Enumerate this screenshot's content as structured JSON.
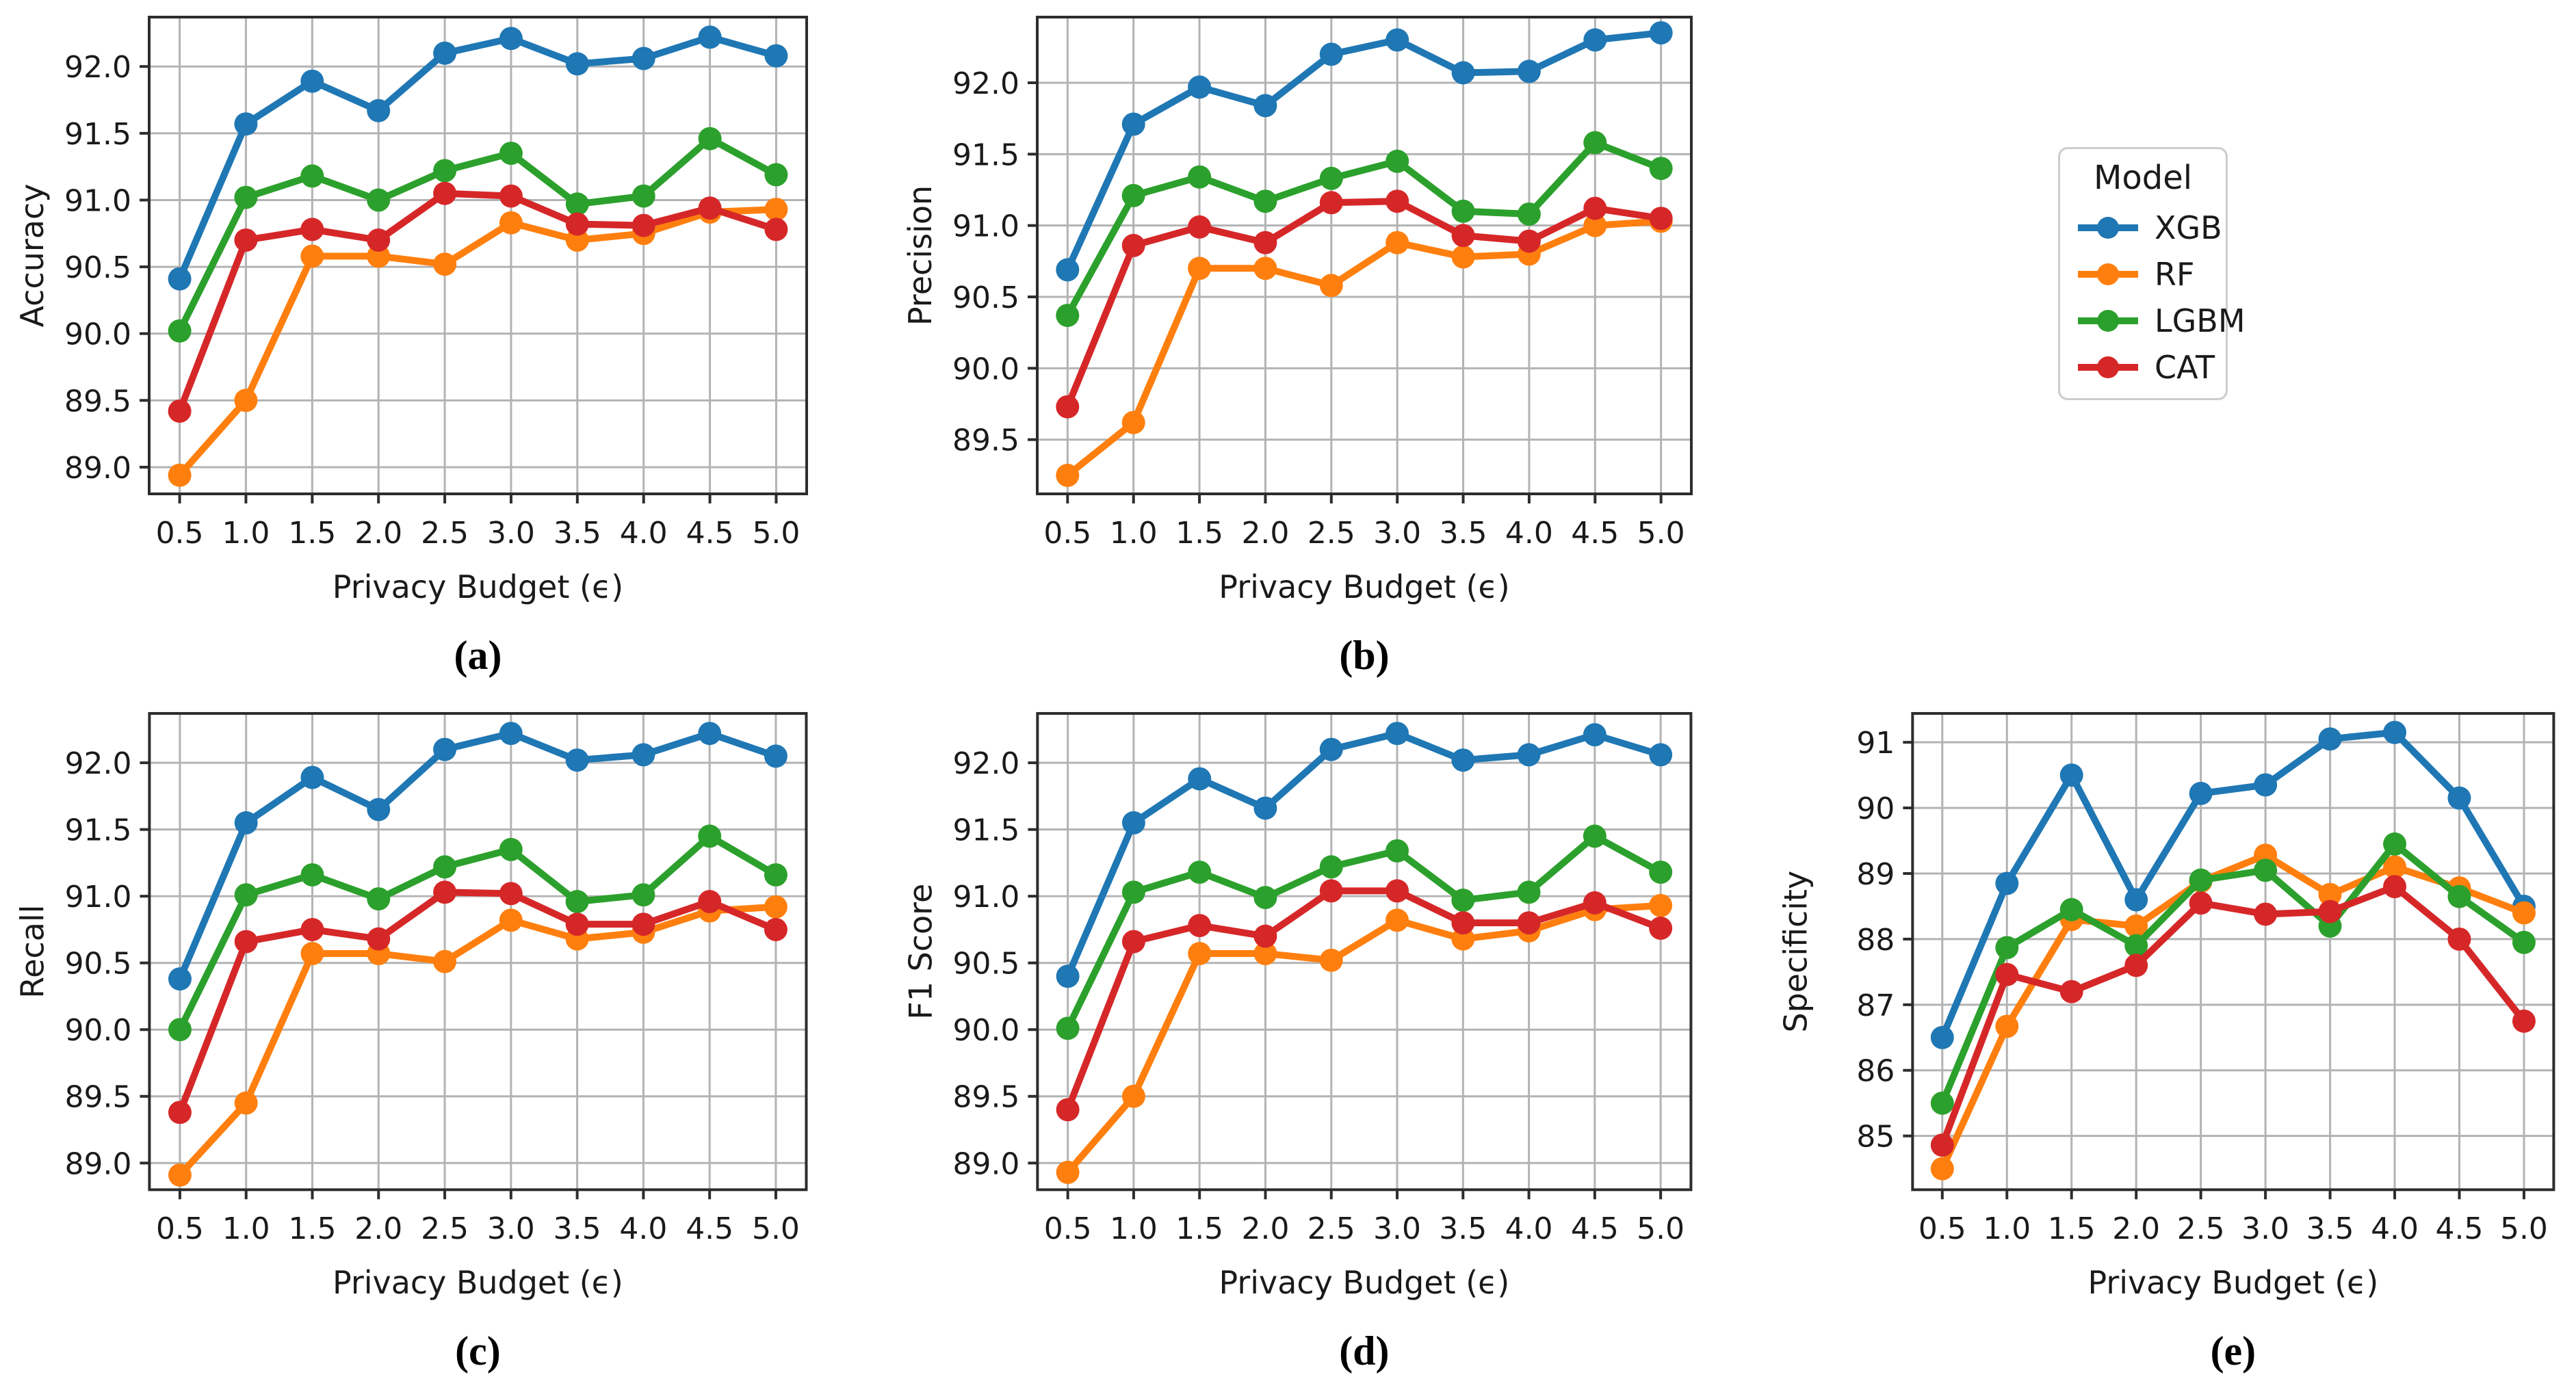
{
  "figure": {
    "background": "#ffffff",
    "legend": {
      "title": "Model",
      "entries": [
        {
          "label": "XGB",
          "color": "#1f77b4"
        },
        {
          "label": "RF",
          "color": "#ff7f0e"
        },
        {
          "label": "LGBM",
          "color": "#2ca02c"
        },
        {
          "label": "CAT",
          "color": "#d62728"
        }
      ]
    },
    "shared_xlabel": "Privacy Budget (ϵ)",
    "grid_color": "#b3b3b3",
    "spine_color": "#2d2d2d"
  },
  "chart_data": [
    {
      "type": "line",
      "caption": "(a)",
      "ylabel": "Accuracy",
      "xlabel": "Privacy Budget (ϵ)",
      "x": [
        0.5,
        1.0,
        1.5,
        2.0,
        2.5,
        3.0,
        3.5,
        4.0,
        4.5,
        5.0
      ],
      "xtick_labels": [
        "0.5",
        "1.0",
        "1.5",
        "2.0",
        "2.5",
        "3.0",
        "3.5",
        "4.0",
        "4.5",
        "5.0"
      ],
      "yticks": [
        89.0,
        89.5,
        90.0,
        90.5,
        91.0,
        91.5,
        92.0
      ],
      "ytick_labels": [
        "89.0",
        "89.5",
        "90.0",
        "90.5",
        "91.0",
        "91.5",
        "92.0"
      ],
      "ylim": [
        88.8,
        92.37
      ],
      "xlim": [
        0.27,
        5.23
      ],
      "grid": true,
      "series": [
        {
          "name": "XGB",
          "color": "#1f77b4",
          "values": [
            90.41,
            91.57,
            91.89,
            91.67,
            92.1,
            92.21,
            92.02,
            92.06,
            92.22,
            92.08
          ]
        },
        {
          "name": "RF",
          "color": "#ff7f0e",
          "values": [
            88.94,
            89.5,
            90.58,
            90.58,
            90.52,
            90.83,
            90.7,
            90.75,
            90.91,
            90.93
          ]
        },
        {
          "name": "LGBM",
          "color": "#2ca02c",
          "values": [
            90.02,
            91.02,
            91.18,
            91.0,
            91.22,
            91.35,
            90.97,
            91.03,
            91.46,
            91.19
          ]
        },
        {
          "name": "CAT",
          "color": "#d62728",
          "values": [
            89.42,
            90.7,
            90.78,
            90.7,
            91.05,
            91.03,
            90.82,
            90.81,
            90.94,
            90.78
          ]
        }
      ]
    },
    {
      "type": "line",
      "caption": "(b)",
      "ylabel": "Precision",
      "xlabel": "Privacy Budget (ϵ)",
      "x": [
        0.5,
        1.0,
        1.5,
        2.0,
        2.5,
        3.0,
        3.5,
        4.0,
        4.5,
        5.0
      ],
      "xtick_labels": [
        "0.5",
        "1.0",
        "1.5",
        "2.0",
        "2.5",
        "3.0",
        "3.5",
        "4.0",
        "4.5",
        "5.0"
      ],
      "yticks": [
        89.5,
        90.0,
        90.5,
        91.0,
        91.5,
        92.0
      ],
      "ytick_labels": [
        "89.5",
        "90.0",
        "90.5",
        "91.0",
        "91.5",
        "92.0"
      ],
      "ylim": [
        89.12,
        92.46
      ],
      "xlim": [
        0.27,
        5.23
      ],
      "grid": true,
      "series": [
        {
          "name": "XGB",
          "color": "#1f77b4",
          "values": [
            90.69,
            91.71,
            91.97,
            91.84,
            92.2,
            92.3,
            92.07,
            92.08,
            92.3,
            92.35
          ]
        },
        {
          "name": "RF",
          "color": "#ff7f0e",
          "values": [
            89.25,
            89.62,
            90.7,
            90.7,
            90.58,
            90.88,
            90.78,
            90.8,
            91.0,
            91.03
          ]
        },
        {
          "name": "LGBM",
          "color": "#2ca02c",
          "values": [
            90.37,
            91.21,
            91.34,
            91.17,
            91.33,
            91.45,
            91.1,
            91.08,
            91.58,
            91.4
          ]
        },
        {
          "name": "CAT",
          "color": "#d62728",
          "values": [
            89.73,
            90.86,
            90.99,
            90.88,
            91.16,
            91.17,
            90.93,
            90.89,
            91.12,
            91.05
          ]
        }
      ]
    },
    {
      "type": "line",
      "caption": "(c)",
      "ylabel": "Recall",
      "xlabel": "Privacy Budget (ϵ)",
      "x": [
        0.5,
        1.0,
        1.5,
        2.0,
        2.5,
        3.0,
        3.5,
        4.0,
        4.5,
        5.0
      ],
      "xtick_labels": [
        "0.5",
        "1.0",
        "1.5",
        "2.0",
        "2.5",
        "3.0",
        "3.5",
        "4.0",
        "4.5",
        "5.0"
      ],
      "yticks": [
        89.0,
        89.5,
        90.0,
        90.5,
        91.0,
        91.5,
        92.0
      ],
      "ytick_labels": [
        "89.0",
        "89.5",
        "90.0",
        "90.5",
        "91.0",
        "91.5",
        "92.0"
      ],
      "ylim": [
        88.8,
        92.37
      ],
      "xlim": [
        0.27,
        5.23
      ],
      "grid": true,
      "series": [
        {
          "name": "XGB",
          "color": "#1f77b4",
          "values": [
            90.38,
            91.55,
            91.89,
            91.65,
            92.1,
            92.22,
            92.02,
            92.06,
            92.22,
            92.05
          ]
        },
        {
          "name": "RF",
          "color": "#ff7f0e",
          "values": [
            88.91,
            89.45,
            90.57,
            90.57,
            90.51,
            90.82,
            90.68,
            90.73,
            90.89,
            90.92
          ]
        },
        {
          "name": "LGBM",
          "color": "#2ca02c",
          "values": [
            90.0,
            91.01,
            91.16,
            90.98,
            91.22,
            91.35,
            90.96,
            91.01,
            91.45,
            91.16
          ]
        },
        {
          "name": "CAT",
          "color": "#d62728",
          "values": [
            89.38,
            90.66,
            90.75,
            90.68,
            91.03,
            91.02,
            90.79,
            90.79,
            90.96,
            90.75
          ]
        }
      ]
    },
    {
      "type": "line",
      "caption": "(d)",
      "ylabel": "F1 Score",
      "xlabel": "Privacy Budget (ϵ)",
      "x": [
        0.5,
        1.0,
        1.5,
        2.0,
        2.5,
        3.0,
        3.5,
        4.0,
        4.5,
        5.0
      ],
      "xtick_labels": [
        "0.5",
        "1.0",
        "1.5",
        "2.0",
        "2.5",
        "3.0",
        "3.5",
        "4.0",
        "4.5",
        "5.0"
      ],
      "yticks": [
        89.0,
        89.5,
        90.0,
        90.5,
        91.0,
        91.5,
        92.0
      ],
      "ytick_labels": [
        "89.0",
        "89.5",
        "90.0",
        "90.5",
        "91.0",
        "91.5",
        "92.0"
      ],
      "ylim": [
        88.8,
        92.37
      ],
      "xlim": [
        0.27,
        5.23
      ],
      "grid": true,
      "series": [
        {
          "name": "XGB",
          "color": "#1f77b4",
          "values": [
            90.4,
            91.55,
            91.88,
            91.66,
            92.1,
            92.22,
            92.02,
            92.06,
            92.21,
            92.06
          ]
        },
        {
          "name": "RF",
          "color": "#ff7f0e",
          "values": [
            88.93,
            89.5,
            90.57,
            90.57,
            90.52,
            90.82,
            90.68,
            90.74,
            90.9,
            90.93
          ]
        },
        {
          "name": "LGBM",
          "color": "#2ca02c",
          "values": [
            90.01,
            91.03,
            91.18,
            90.99,
            91.22,
            91.34,
            90.97,
            91.03,
            91.45,
            91.18
          ]
        },
        {
          "name": "CAT",
          "color": "#d62728",
          "values": [
            89.4,
            90.66,
            90.78,
            90.7,
            91.04,
            91.04,
            90.8,
            90.8,
            90.95,
            90.76
          ]
        }
      ]
    },
    {
      "type": "line",
      "caption": "(e)",
      "ylabel": "Specificity",
      "xlabel": "Privacy Budget (ϵ)",
      "x": [
        0.5,
        1.0,
        1.5,
        2.0,
        2.5,
        3.0,
        3.5,
        4.0,
        4.5,
        5.0
      ],
      "xtick_labels": [
        "0.5",
        "1.0",
        "1.5",
        "2.0",
        "2.5",
        "3.0",
        "3.5",
        "4.0",
        "4.5",
        "5.0"
      ],
      "yticks": [
        85,
        86,
        87,
        88,
        89,
        90,
        91
      ],
      "ytick_labels": [
        "85",
        "86",
        "87",
        "88",
        "89",
        "90",
        "91"
      ],
      "ylim": [
        84.18,
        91.44
      ],
      "xlim": [
        0.27,
        5.23
      ],
      "grid": true,
      "series": [
        {
          "name": "XGB",
          "color": "#1f77b4",
          "values": [
            86.5,
            88.85,
            90.5,
            88.6,
            90.22,
            90.35,
            91.05,
            91.15,
            90.15,
            88.5
          ]
        },
        {
          "name": "RF",
          "color": "#ff7f0e",
          "values": [
            84.5,
            86.67,
            88.3,
            88.2,
            88.88,
            89.28,
            88.68,
            89.1,
            88.78,
            88.4
          ]
        },
        {
          "name": "LGBM",
          "color": "#2ca02c",
          "values": [
            85.5,
            87.87,
            88.45,
            87.9,
            88.9,
            89.05,
            88.2,
            89.45,
            88.65,
            87.95
          ]
        },
        {
          "name": "CAT",
          "color": "#d62728",
          "values": [
            84.86,
            87.46,
            87.2,
            87.6,
            88.55,
            88.38,
            88.42,
            88.8,
            88.0,
            86.75
          ]
        }
      ]
    }
  ]
}
